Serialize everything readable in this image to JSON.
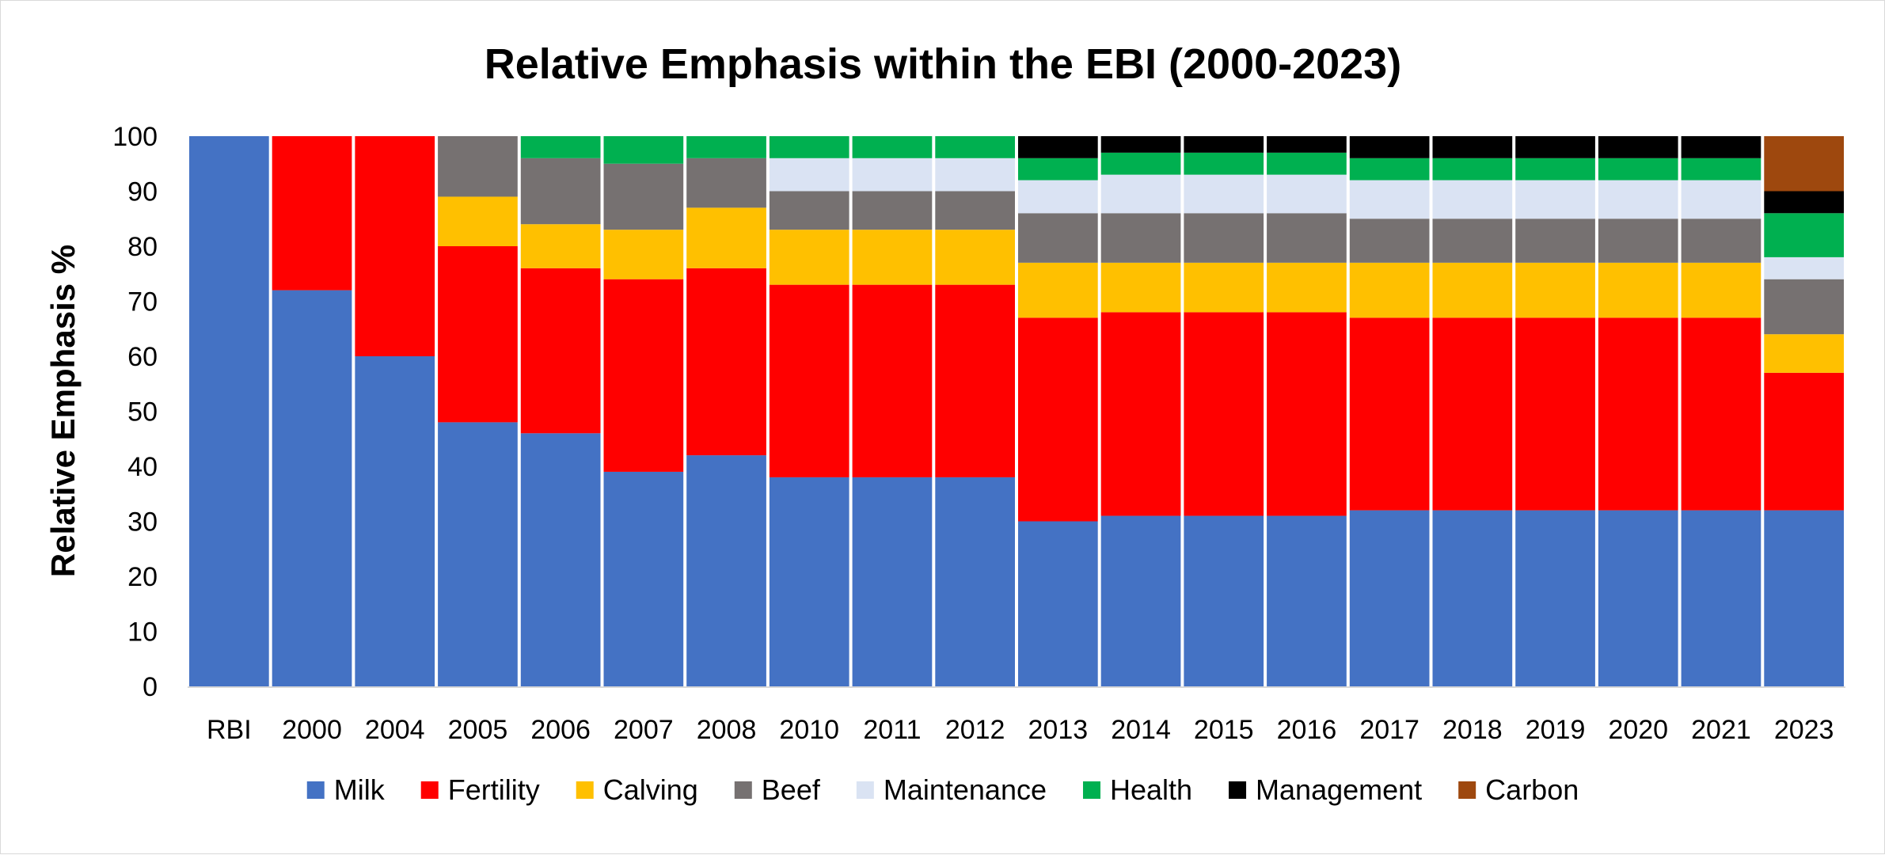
{
  "chart_data": {
    "type": "bar",
    "stacked": true,
    "title": "Relative Emphasis within the EBI (2000-2023)",
    "xlabel": "",
    "ylabel": "Relative Emphasis %",
    "ylim": [
      0,
      100
    ],
    "yticks": [
      0,
      10,
      20,
      30,
      40,
      50,
      60,
      70,
      80,
      90,
      100
    ],
    "grid": false,
    "legend_position": "bottom",
    "categories": [
      "RBI",
      "2000",
      "2004",
      "2005",
      "2006",
      "2007",
      "2008",
      "2010",
      "2011",
      "2012",
      "2013",
      "2014",
      "2015",
      "2016",
      "2017",
      "2018",
      "2019",
      "2020",
      "2021",
      "2023"
    ],
    "series": [
      {
        "name": "Milk",
        "color": "#4472C4",
        "values": [
          100,
          72,
          60,
          48,
          46,
          39,
          42,
          38,
          38,
          38,
          30,
          31,
          31,
          31,
          32,
          32,
          32,
          32,
          32,
          32
        ]
      },
      {
        "name": "Fertility",
        "color": "#FF0000",
        "values": [
          0,
          28,
          40,
          32,
          30,
          35,
          34,
          35,
          35,
          35,
          37,
          37,
          37,
          37,
          35,
          35,
          35,
          35,
          35,
          25
        ]
      },
      {
        "name": "Calving",
        "color": "#FFC000",
        "values": [
          0,
          0,
          0,
          9,
          8,
          9,
          11,
          10,
          10,
          10,
          10,
          9,
          9,
          9,
          10,
          10,
          10,
          10,
          10,
          7
        ]
      },
      {
        "name": "Beef",
        "color": "#767171",
        "values": [
          0,
          0,
          0,
          11,
          12,
          12,
          9,
          7,
          7,
          7,
          9,
          9,
          9,
          9,
          8,
          8,
          8,
          8,
          8,
          10
        ]
      },
      {
        "name": "Maintenance",
        "color": "#DAE3F3",
        "values": [
          0,
          0,
          0,
          0,
          0,
          0,
          0,
          6,
          6,
          6,
          6,
          7,
          7,
          7,
          7,
          7,
          7,
          7,
          7,
          4
        ]
      },
      {
        "name": "Health",
        "color": "#00B050",
        "values": [
          0,
          0,
          0,
          0,
          4,
          5,
          4,
          4,
          4,
          4,
          4,
          4,
          4,
          4,
          4,
          4,
          4,
          4,
          4,
          8
        ]
      },
      {
        "name": "Management",
        "color": "#000000",
        "values": [
          0,
          0,
          0,
          0,
          0,
          0,
          0,
          0,
          0,
          0,
          4,
          3,
          3,
          3,
          4,
          4,
          4,
          4,
          4,
          4
        ]
      },
      {
        "name": "Carbon",
        "color": "#9E480E",
        "values": [
          0,
          0,
          0,
          0,
          0,
          0,
          0,
          0,
          0,
          0,
          0,
          0,
          0,
          0,
          0,
          0,
          0,
          0,
          0,
          10
        ]
      }
    ]
  }
}
